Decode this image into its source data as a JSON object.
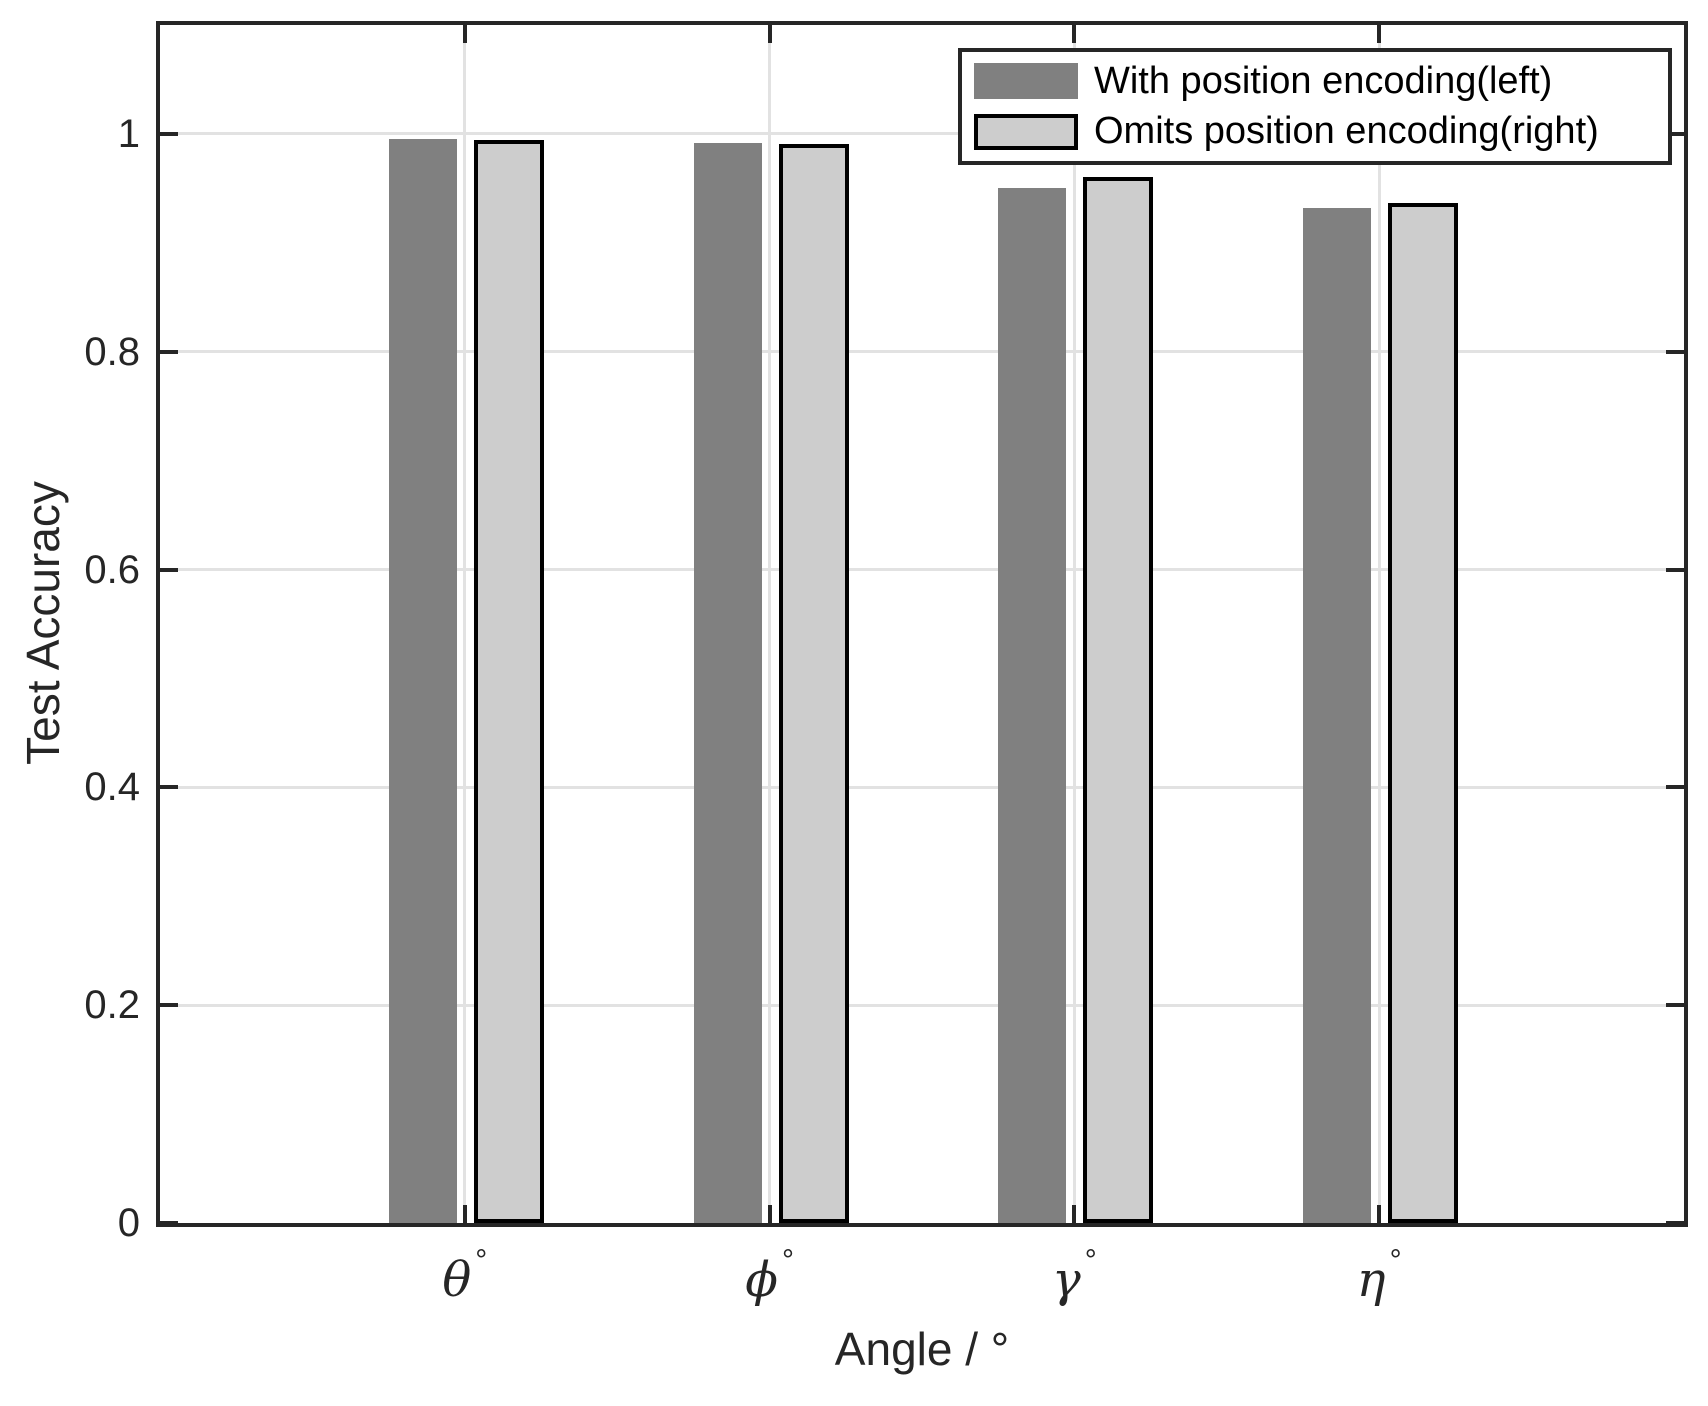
{
  "figure": {
    "background": "#ffffff"
  },
  "chart_data": {
    "type": "bar",
    "title": "",
    "xlabel": "Angle / °",
    "ylabel": "Test Accuracy",
    "categories": [
      "θ",
      "ϕ",
      "γ",
      "η"
    ],
    "category_suffix": "°",
    "x_tick_display": [
      "θ°",
      "ϕ°",
      "γ°",
      "η°"
    ],
    "series": [
      {
        "name": "With position encoding(left)",
        "color": "#808080",
        "edge": null,
        "values": [
          0.995,
          0.992,
          0.95,
          0.932
        ]
      },
      {
        "name": "Omits position encoding(right)",
        "color": "#cdcdcd",
        "edge": "#000000",
        "values": [
          0.994,
          0.991,
          0.96,
          0.937
        ]
      }
    ],
    "ylim": [
      0,
      1.1
    ],
    "yticks": [
      0,
      0.2,
      0.4,
      0.6,
      0.8,
      1
    ],
    "ytick_labels": [
      "0",
      "0.2",
      "0.4",
      "0.6",
      "0.8",
      "1"
    ],
    "grid": true,
    "legend_position": "top-right",
    "colors": {
      "grid": "#e2e2e2",
      "axis": "#262626",
      "background": "#ffffff"
    }
  }
}
